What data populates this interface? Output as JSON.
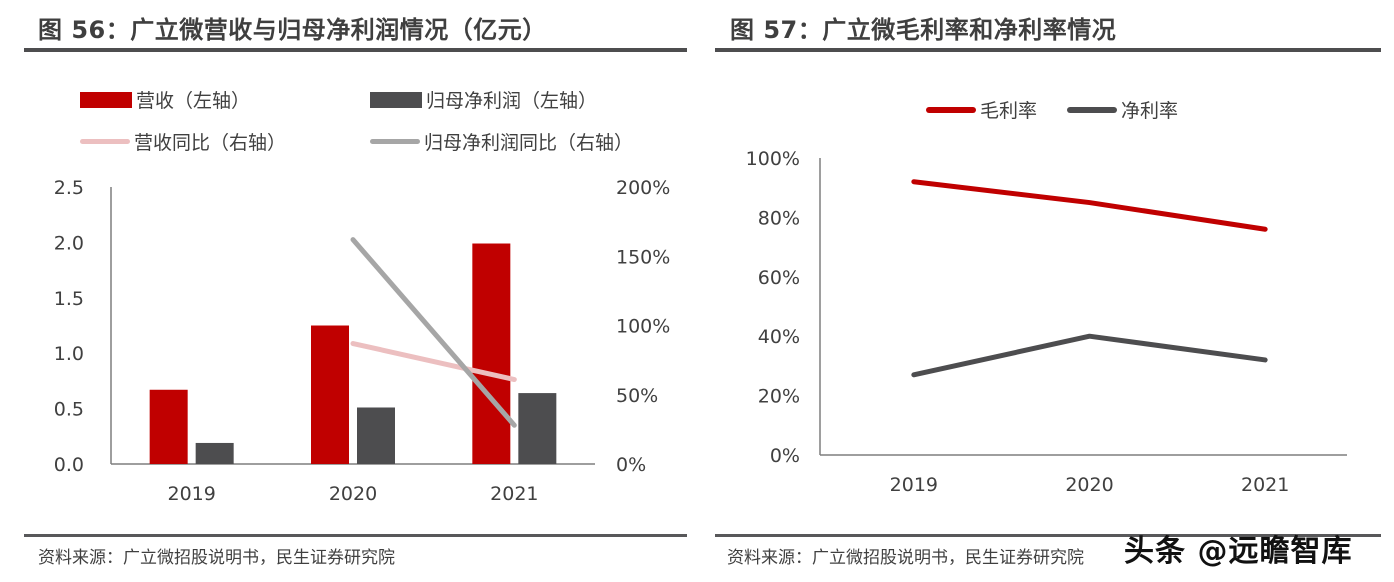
{
  "fig56": {
    "title": "图 56：广立微营收与归母净利润情况（亿元）",
    "source": "资料来源：广立微招股说明书，民生证券研究院"
  },
  "fig57": {
    "title": "图 57：广立微毛利率和净利率情况",
    "source": "资料来源：广立微招股说明书，民生证券研究院"
  },
  "watermark": "头条 @远瞻智库",
  "colors": {
    "revenue": "#c00000",
    "net_profit": "#4d4d4f",
    "revenue_yoy": "#ecbfc0",
    "net_profit_yoy": "#a6a6a6",
    "gross_margin": "#c00000",
    "net_margin": "#4d4d4f"
  },
  "chart_data": [
    {
      "type": "bar",
      "title": "图 56：广立微营收与归母净利润情况（亿元）",
      "categories": [
        "2019",
        "2020",
        "2021"
      ],
      "xlabel": "",
      "ylabel": "",
      "ylim": [
        0,
        2.5
      ],
      "yticks": [
        "0.0",
        "0.5",
        "1.0",
        "1.5",
        "2.0",
        "2.5"
      ],
      "y2lim": [
        0,
        200
      ],
      "y2ticks": [
        "0%",
        "50%",
        "100%",
        "150%",
        "200%"
      ],
      "grid": false,
      "legend": "top",
      "series": [
        {
          "name": "营收（左轴）",
          "kind": "bar",
          "axis": "left",
          "values": [
            0.67,
            1.25,
            1.99
          ]
        },
        {
          "name": "归母净利润（左轴）",
          "kind": "bar",
          "axis": "left",
          "values": [
            0.19,
            0.51,
            0.64
          ]
        },
        {
          "name": "营收同比（右轴）",
          "kind": "line",
          "axis": "right",
          "values": [
            null,
            87,
            61
          ]
        },
        {
          "name": "归母净利润同比（右轴）",
          "kind": "line",
          "axis": "right",
          "values": [
            null,
            162,
            28
          ]
        }
      ]
    },
    {
      "type": "line",
      "title": "图 57：广立微毛利率和净利率情况",
      "categories": [
        "2019",
        "2020",
        "2021"
      ],
      "xlabel": "",
      "ylabel": "",
      "ylim": [
        0,
        100
      ],
      "yticks": [
        "0%",
        "20%",
        "40%",
        "60%",
        "80%",
        "100%"
      ],
      "grid": false,
      "legend": "top",
      "series": [
        {
          "name": "毛利率",
          "values": [
            92,
            85,
            76
          ]
        },
        {
          "name": "净利率",
          "values": [
            27,
            40,
            32
          ]
        }
      ]
    }
  ]
}
